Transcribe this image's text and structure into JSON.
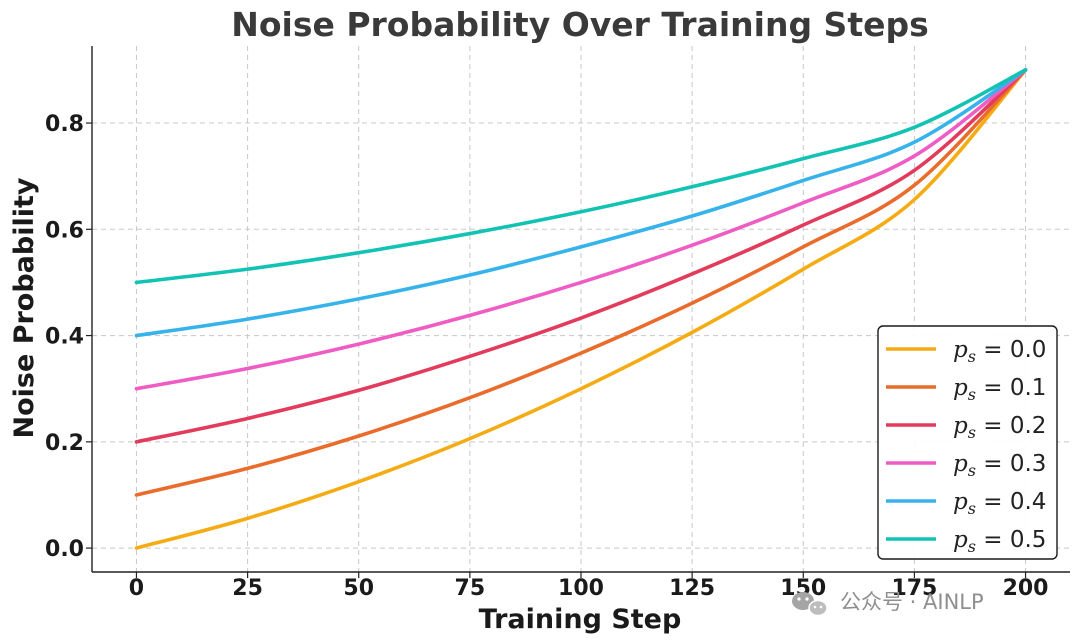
{
  "chart_data": {
    "type": "line",
    "title": "Noise Probability Over Training Steps",
    "xlabel": "Training Step",
    "ylabel": "Noise Probability",
    "xlim": [
      -10,
      210
    ],
    "ylim": [
      -0.045,
      0.945
    ],
    "xticks": [
      0,
      25,
      50,
      75,
      100,
      125,
      150,
      175,
      200
    ],
    "yticks": [
      0.0,
      0.2,
      0.4,
      0.6,
      0.8
    ],
    "ytick_labels": [
      "0.0",
      "0.2",
      "0.4",
      "0.6",
      "0.8"
    ],
    "grid": true,
    "legend_position": "lower-right",
    "x": [
      0,
      25,
      50,
      75,
      100,
      125,
      150,
      175,
      200
    ],
    "series": [
      {
        "name": "p_s = 0.0",
        "color": "#F5AC14",
        "values": [
          0.0,
          0.056,
          0.125,
          0.206,
          0.3,
          0.406,
          0.525,
          0.656,
          0.9
        ]
      },
      {
        "name": "p_s = 0.1",
        "color": "#EA6C2C",
        "values": [
          0.1,
          0.15,
          0.211,
          0.283,
          0.367,
          0.461,
          0.567,
          0.683,
          0.9
        ]
      },
      {
        "name": "p_s = 0.2",
        "color": "#E23B5C",
        "values": [
          0.2,
          0.244,
          0.297,
          0.361,
          0.433,
          0.516,
          0.608,
          0.711,
          0.9
        ]
      },
      {
        "name": "p_s = 0.3",
        "color": "#EE5CC4",
        "values": [
          0.3,
          0.338,
          0.384,
          0.438,
          0.5,
          0.57,
          0.65,
          0.738,
          0.9
        ]
      },
      {
        "name": "p_s = 0.4",
        "color": "#36B3EB",
        "values": [
          0.4,
          0.431,
          0.469,
          0.514,
          0.567,
          0.625,
          0.692,
          0.764,
          0.9
        ]
      },
      {
        "name": "p_s = 0.5",
        "color": "#12C3B3",
        "values": [
          0.5,
          0.525,
          0.556,
          0.592,
          0.633,
          0.68,
          0.733,
          0.792,
          0.9
        ]
      }
    ],
    "legend": [
      {
        "symbol": "p",
        "sub": "s",
        "text": " = 0.0"
      },
      {
        "symbol": "p",
        "sub": "s",
        "text": " = 0.1"
      },
      {
        "symbol": "p",
        "sub": "s",
        "text": " = 0.2"
      },
      {
        "symbol": "p",
        "sub": "s",
        "text": " = 0.3"
      },
      {
        "symbol": "p",
        "sub": "s",
        "text": " = 0.4"
      },
      {
        "symbol": "p",
        "sub": "s",
        "text": " = 0.5"
      }
    ]
  },
  "watermark": {
    "icon": "wechat-icon",
    "text": "公众号 · AINLP"
  }
}
